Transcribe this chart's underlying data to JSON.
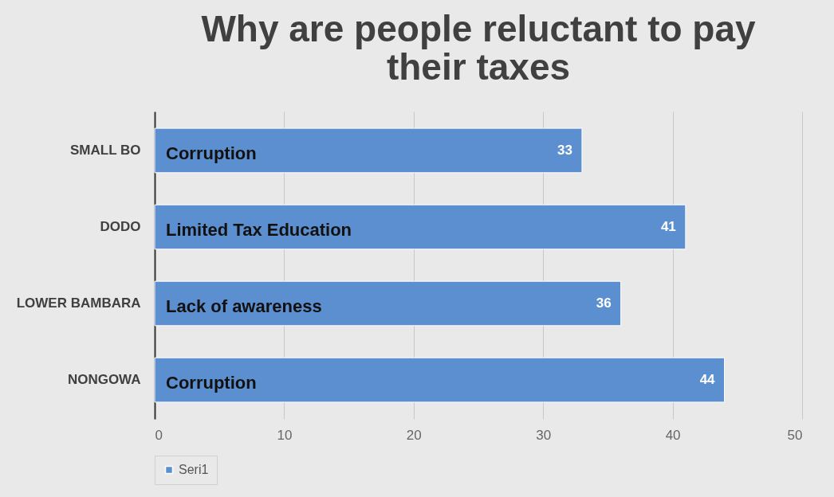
{
  "chart_data": {
    "type": "bar",
    "orientation": "horizontal",
    "title": "Why are people reluctant to pay their taxes",
    "categories": [
      "SMALL BO",
      "DODO",
      "LOWER BAMBARA",
      "NONGOWA"
    ],
    "series": [
      {
        "name": "Seri1",
        "color": "#5b8fcf",
        "values": [
          33,
          41,
          36,
          44
        ]
      }
    ],
    "xlim": [
      0,
      50
    ],
    "xticks": [
      0,
      10,
      20,
      30,
      40,
      50
    ],
    "grid": "x",
    "legend": "bottom",
    "data_labels": true,
    "annotations": [
      "Corruption",
      "Limited Tax Education",
      "Lack of awareness",
      "Corruption"
    ]
  }
}
